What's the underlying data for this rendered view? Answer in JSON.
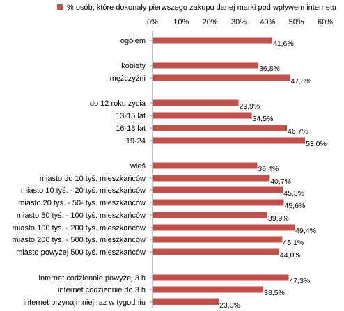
{
  "chart_data": {
    "type": "bar",
    "orientation": "horizontal",
    "legend": {
      "label": "% osób, które dokonały pierwszego zakupu danej marki pod wpływem internetu",
      "placement": "top"
    },
    "bar_color": "#c0504d",
    "xlim": [
      0,
      60
    ],
    "x_ticks": [
      "0%",
      "10%",
      "20%",
      "30%",
      "40%",
      "50%",
      "60%"
    ],
    "x_tick_values": [
      0,
      10,
      20,
      30,
      40,
      50,
      60
    ],
    "grid": false,
    "categories": [
      "ogółem",
      "kobiety",
      "mężczyźni",
      "do 12 roku życia",
      "13-15 lat",
      "16-18 lat",
      "19-24",
      "wieś",
      "miasto do 10 tyś. mieszkańców",
      "miasto 10 tyś. - 20 tyś. mieszkańców",
      "miasto 20 tyś. - 50- tyś. mieszkańców",
      "miasto 50 tyś. - 100 tyś. mieszkańców",
      "miasto 100 tyś. - 200 tyś. mieszkańców",
      "miasto 200 tyś. - 500 tyś. mieszkańców",
      "miasto powyżej 500 tyś. mieszkańców",
      "internet codziennie powyżej 3 h",
      "internet codziennie do 3 h",
      "internet przynajmniej raz w tygodniu"
    ],
    "values": [
      41.6,
      36.8,
      47.8,
      29.9,
      34.5,
      46.7,
      53.0,
      36.4,
      40.7,
      45.3,
      45.6,
      39.9,
      49.4,
      45.1,
      44.0,
      47.3,
      38.5,
      23.0
    ],
    "value_labels": [
      "41,6%",
      "36,8%",
      "47,8%",
      "29,9%",
      "34,5%",
      "46,7%",
      "53,0%",
      "36,4%",
      "40,7%",
      "45,3%",
      "45,6%",
      "39,9%",
      "49,4%",
      "45,1%",
      "44,0%",
      "47,3%",
      "38,5%",
      "23,0%"
    ],
    "groups": [
      [
        0
      ],
      [
        1,
        2
      ],
      [
        3,
        4,
        5,
        6
      ],
      [
        7,
        8,
        9,
        10,
        11,
        12,
        13,
        14
      ],
      [
        15,
        16,
        17
      ]
    ]
  }
}
